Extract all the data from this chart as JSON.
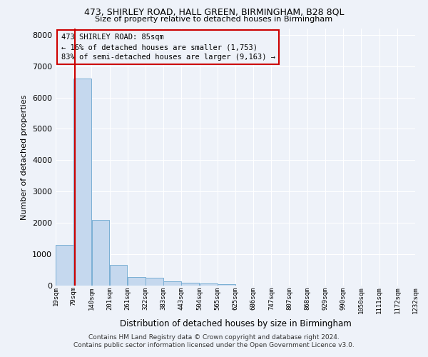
{
  "title1": "473, SHIRLEY ROAD, HALL GREEN, BIRMINGHAM, B28 8QL",
  "title2": "Size of property relative to detached houses in Birmingham",
  "xlabel": "Distribution of detached houses by size in Birmingham",
  "ylabel": "Number of detached properties",
  "footer1": "Contains HM Land Registry data © Crown copyright and database right 2024.",
  "footer2": "Contains public sector information licensed under the Open Government Licence v3.0.",
  "annotation_line1": "473 SHIRLEY ROAD: 85sqm",
  "annotation_line2": "← 16% of detached houses are smaller (1,753)",
  "annotation_line3": "83% of semi-detached houses are larger (9,163) →",
  "property_size": 85,
  "bar_edges": [
    19,
    79,
    140,
    201,
    261,
    322,
    383,
    443,
    504,
    565,
    625,
    686,
    747,
    807,
    868,
    929,
    990,
    1050,
    1111,
    1172,
    1232
  ],
  "bar_heights": [
    1300,
    6600,
    2100,
    650,
    280,
    260,
    130,
    100,
    70,
    50,
    0,
    0,
    0,
    0,
    0,
    0,
    0,
    0,
    0,
    0
  ],
  "bar_color": "#c5d8ee",
  "bar_edge_color": "#7aafd4",
  "vline_color": "#cc0000",
  "vline_x": 85,
  "annotation_box_color": "#cc0000",
  "background_color": "#eef2f9",
  "grid_color": "#ffffff",
  "ylim": [
    0,
    8200
  ],
  "yticks": [
    0,
    1000,
    2000,
    3000,
    4000,
    5000,
    6000,
    7000,
    8000
  ]
}
